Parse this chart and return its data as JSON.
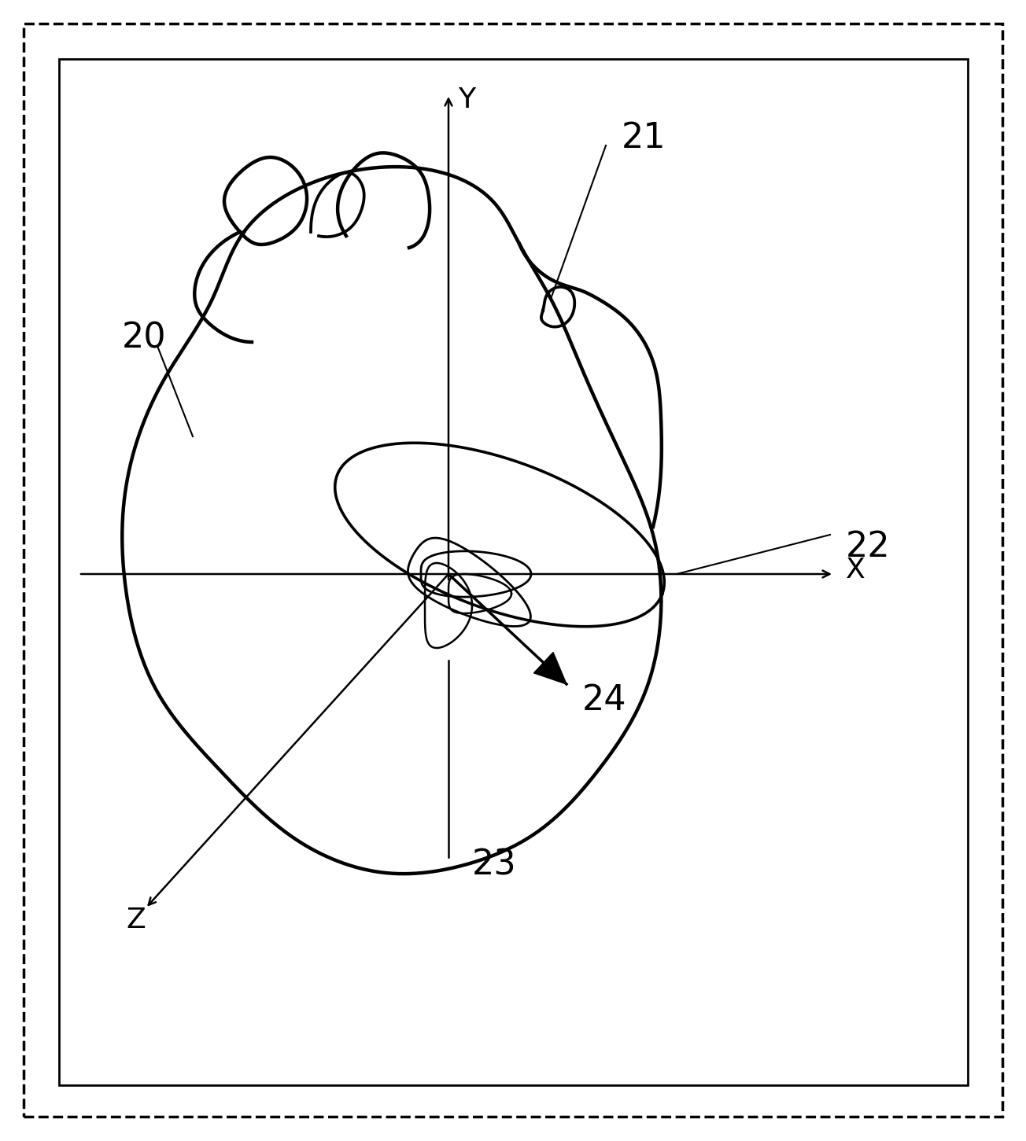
{
  "background_color": "#ffffff",
  "fig_width": 13.04,
  "fig_height": 14.51,
  "dpi": 100,
  "label_20": "20",
  "label_21": "21",
  "label_22": "22",
  "label_23": "23",
  "label_24": "24",
  "axis_x_label": "X",
  "axis_y_label": "Y",
  "axis_z_label": "Z",
  "lw_heart": 3.2,
  "lw_ecg": 2.3,
  "lw_axis": 1.8,
  "label_fontsize": 32
}
